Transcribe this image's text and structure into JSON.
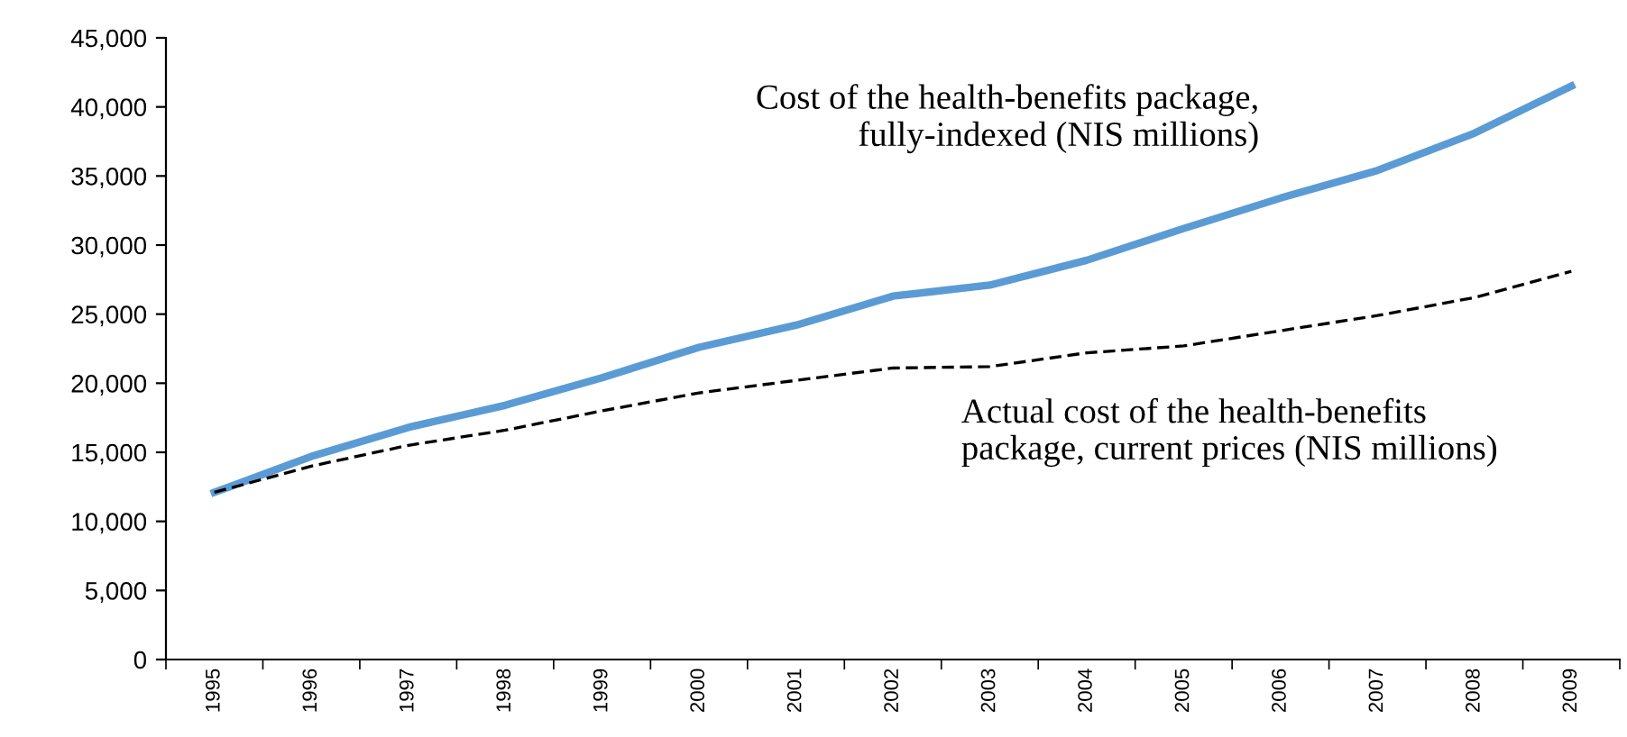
{
  "chart_data": {
    "type": "line",
    "categories": [
      "1995",
      "1996",
      "1997",
      "1998",
      "1999",
      "2000",
      "2001",
      "2002",
      "2003",
      "2004",
      "2005",
      "2006",
      "2007",
      "2008",
      "2009"
    ],
    "series": [
      {
        "color": "#5b9bd5",
        "line_style": "solid",
        "values": [
          12100,
          14700,
          16800,
          18400,
          20400,
          22600,
          24200,
          26300,
          27100,
          28900,
          31200,
          33400,
          35400,
          38100,
          41500
        ]
      },
      {
        "color": "#000000",
        "line_style": "dashed",
        "values": [
          12100,
          14000,
          15500,
          16600,
          18000,
          19300,
          20200,
          21100,
          21200,
          22200,
          22700,
          23800,
          24900,
          26200,
          28100
        ]
      }
    ],
    "ylim": [
      0,
      45000
    ],
    "yticks": [
      0,
      {
        "value": 5000,
        "label": "5,000"
      },
      {
        "value": 10000,
        "label": "10,000"
      },
      {
        "value": 15000,
        "label": "15,000"
      },
      {
        "value": 20000,
        "label": "20,000"
      },
      {
        "value": 25000,
        "label": "25,000"
      },
      {
        "value": 30000,
        "label": "30,000"
      },
      {
        "value": 35000,
        "label": "35,000"
      },
      {
        "value": 40000,
        "label": "40,000"
      },
      {
        "value": 45000,
        "label": "45,000"
      }
    ],
    "grid": false,
    "marker": "none",
    "annotations": [
      "Cost of the health-benefits package,\nfully-indexed (NIS millions)",
      "Actual cost of the health-benefits\npackage, current prices (NIS millions)"
    ]
  }
}
